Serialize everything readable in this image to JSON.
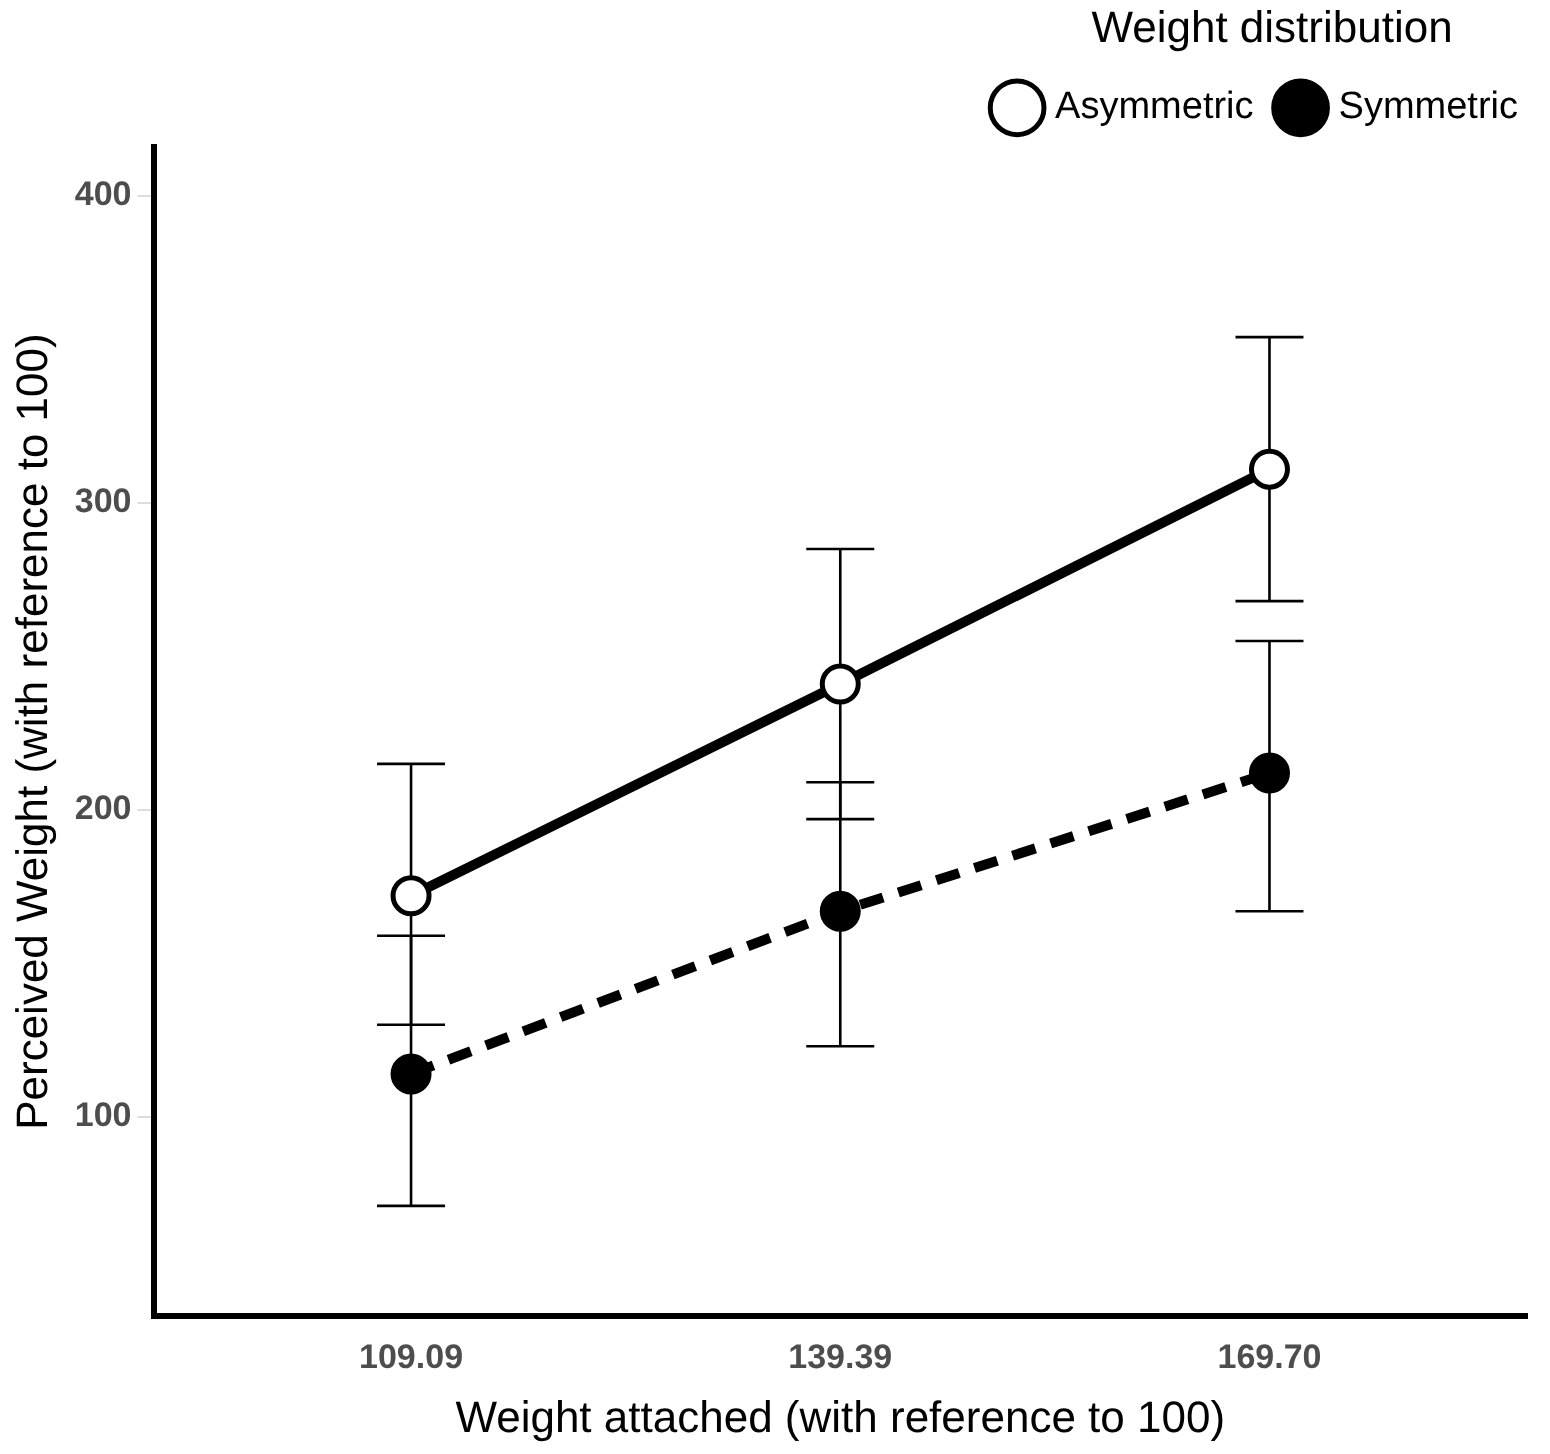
{
  "chart_data": {
    "type": "line",
    "xlabel": "Weight attached (with reference to 100)",
    "ylabel": "Perceived Weight (with reference to 100)",
    "legend_title": "Weight distribution",
    "categories": [
      "109.09",
      "139.39",
      "169.70"
    ],
    "series": [
      {
        "name": "Asymmetric",
        "color": "#000000",
        "line_style": "solid",
        "values": [
          172,
          241,
          311
        ],
        "errors": [
          [
            130,
            215
          ],
          [
            197,
            285
          ],
          [
            268,
            354
          ]
        ]
      },
      {
        "name": "Symmetric",
        "color": "#000000",
        "line_style": "dashed",
        "values": [
          114,
          167,
          212
        ],
        "errors": [
          [
            71,
            159
          ],
          [
            123,
            209
          ],
          [
            167,
            255
          ]
        ]
      }
    ],
    "ylim": [
      35,
      416
    ],
    "yticks": [
      100,
      200,
      300,
      400
    ],
    "grid": false,
    "legend": "top",
    "marker": "circle"
  }
}
